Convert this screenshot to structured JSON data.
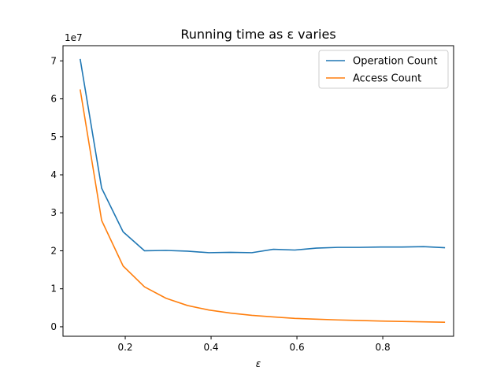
{
  "chart_data": {
    "type": "line",
    "title": "Running time as ε varies",
    "xlabel": "ε",
    "ylabel": "",
    "y_scale_label": "1e7",
    "xlim": [
      0.055,
      0.965
    ],
    "ylim": [
      -0.25,
      7.4
    ],
    "x_ticks": [
      0.2,
      0.4,
      0.6,
      0.8
    ],
    "x_tick_labels": [
      "0.2",
      "0.4",
      "0.6",
      "0.8"
    ],
    "y_ticks": [
      0,
      1,
      2,
      3,
      4,
      5,
      6,
      7
    ],
    "y_tick_labels": [
      "0",
      "1",
      "2",
      "3",
      "4",
      "5",
      "6",
      "7"
    ],
    "legend_position": "top-right",
    "grid": false,
    "x": [
      0.095,
      0.145,
      0.195,
      0.245,
      0.295,
      0.345,
      0.395,
      0.445,
      0.495,
      0.545,
      0.595,
      0.645,
      0.695,
      0.745,
      0.795,
      0.845,
      0.895,
      0.945
    ],
    "series": [
      {
        "name": "Operation Count",
        "color": "#1f77b4",
        "values": [
          7.05,
          3.65,
          2.5,
          2.0,
          2.01,
          1.99,
          1.95,
          1.96,
          1.95,
          2.04,
          2.02,
          2.07,
          2.09,
          2.09,
          2.1,
          2.1,
          2.11,
          2.08
        ]
      },
      {
        "name": "Access Count",
        "color": "#ff7f0e",
        "values": [
          6.25,
          2.8,
          1.6,
          1.05,
          0.75,
          0.56,
          0.44,
          0.36,
          0.3,
          0.26,
          0.22,
          0.2,
          0.18,
          0.165,
          0.15,
          0.14,
          0.13,
          0.12
        ]
      }
    ]
  }
}
